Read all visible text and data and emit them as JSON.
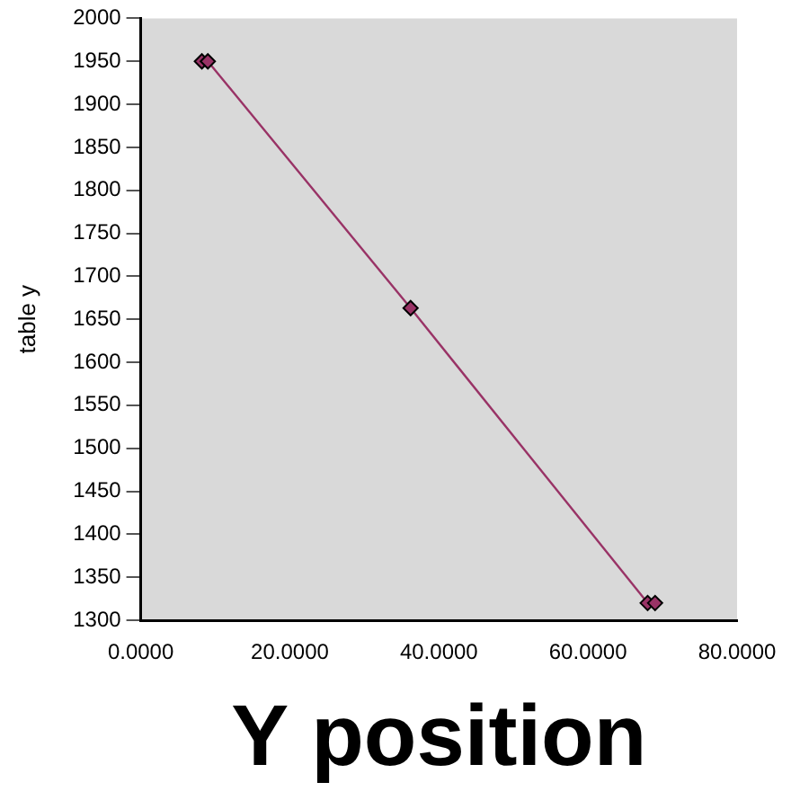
{
  "chart_data": {
    "type": "line",
    "xlabel": "Y position",
    "ylabel": "table y",
    "x": [
      8.2,
      9,
      36.2,
      68,
      69
    ],
    "series": [
      {
        "color": "#993366",
        "values": [
          1950,
          1950,
          1663,
          1320,
          1320
        ]
      }
    ],
    "xlim": [
      0,
      80
    ],
    "xticks": [
      {
        "value": 0,
        "label": "0.0000"
      },
      {
        "value": 20,
        "label": "20.0000"
      },
      {
        "value": 40,
        "label": "40.0000"
      },
      {
        "value": 60,
        "label": "60.0000"
      },
      {
        "value": 80,
        "label": "80.0000"
      }
    ],
    "ylim": [
      1300,
      2000
    ],
    "yticks": [
      1300,
      1350,
      1400,
      1450,
      1500,
      1550,
      1600,
      1650,
      1700,
      1750,
      1800,
      1850,
      1900,
      1950,
      2000
    ],
    "grid": false,
    "legend": false,
    "marker": "diamond",
    "line_style": "solid"
  }
}
